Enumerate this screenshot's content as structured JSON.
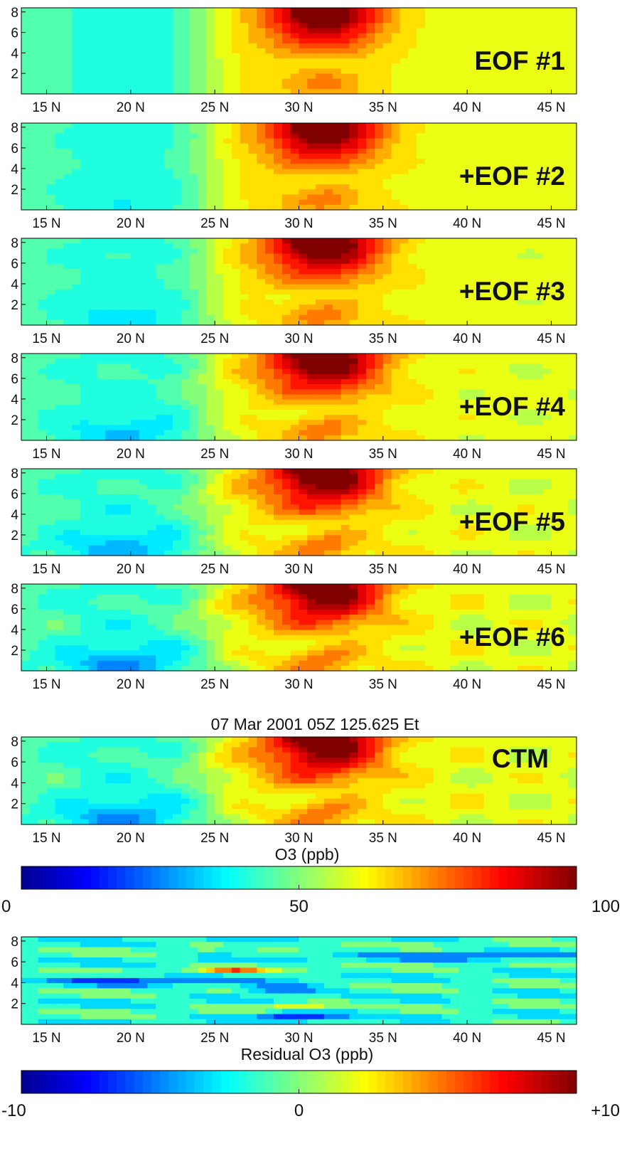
{
  "chart_data": {
    "type": "heatmap",
    "x_ticks": [
      "15 N",
      "20 N",
      "25 N",
      "30 N",
      "35 N",
      "40 N",
      "45 N"
    ],
    "x_tick_values": [
      15,
      20,
      25,
      30,
      35,
      40,
      45
    ],
    "xlim": [
      13.5,
      46.5
    ],
    "y_ticks": [
      "2",
      "4",
      "6",
      "8"
    ],
    "y_tick_values": [
      2,
      4,
      6,
      8
    ],
    "ylim": [
      0,
      8.4
    ],
    "panels": [
      {
        "label": "EOF  #1",
        "title": "",
        "xlabel": ""
      },
      {
        "label": "+EOF  #2",
        "title": "",
        "xlabel": ""
      },
      {
        "label": "+EOF  #3",
        "title": "",
        "xlabel": ""
      },
      {
        "label": "+EOF  #4",
        "title": "",
        "xlabel": ""
      },
      {
        "label": "+EOF  #5",
        "title": "",
        "xlabel": ""
      },
      {
        "label": "+EOF  #6",
        "title": "",
        "xlabel": ""
      },
      {
        "label": "CTM",
        "title": "07 Mar 2001     05Z     125.625 Et",
        "xlabel": "O3   (ppb)"
      },
      {
        "label": "",
        "title": "",
        "xlabel": "Residual  O3   (ppb)"
      }
    ],
    "colorbars": [
      {
        "ticks": [
          "0",
          "50",
          "100"
        ],
        "tick_values": [
          0,
          50,
          100
        ],
        "range": [
          0,
          100
        ],
        "units": "O3   (ppb)"
      },
      {
        "ticks": [
          "-10",
          "0",
          "+10"
        ],
        "tick_values": [
          -10,
          0,
          10
        ],
        "range": [
          -10,
          10
        ],
        "units": "Residual  O3   (ppb)"
      }
    ]
  },
  "colors": {
    "colormap": "jet",
    "stops": [
      "#00008f",
      "#0000ff",
      "#00ffff",
      "#ffff00",
      "#ff0000",
      "#800000"
    ]
  }
}
